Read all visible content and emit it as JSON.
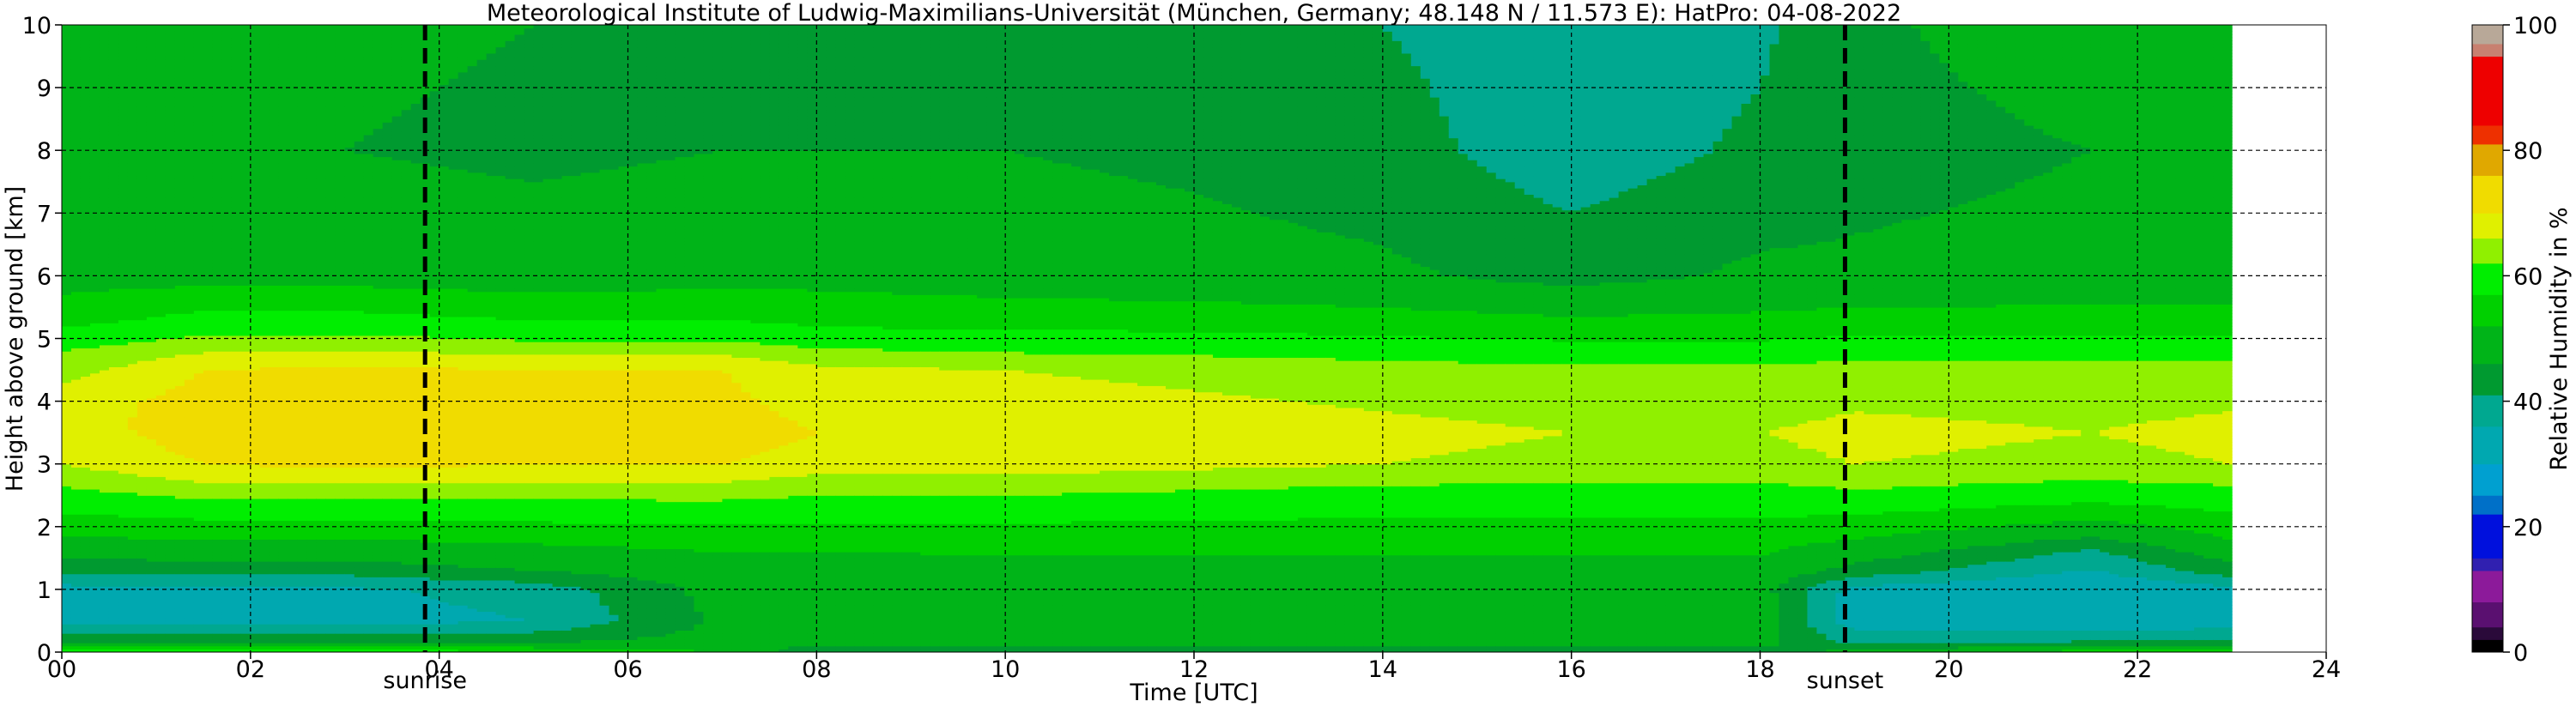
{
  "chart_data": {
    "type": "heatmap",
    "title": "Meteorological Institute of Ludwig-Maximilians-Universität (München, Germany; 48.148 N / 11.573 E):    HatPro: 04-08-2022",
    "xlabel": "Time [UTC]",
    "ylabel": "Height above ground [km]",
    "colorbar_label": "Relative Humidity in %",
    "xlim": [
      0,
      24
    ],
    "ylim": [
      0,
      10
    ],
    "x_ticks": [
      0,
      2,
      4,
      6,
      8,
      10,
      12,
      14,
      16,
      18,
      20,
      22,
      24
    ],
    "x_tick_labels": [
      "00",
      "02",
      "04",
      "06",
      "08",
      "10",
      "12",
      "14",
      "16",
      "18",
      "20",
      "22",
      "24"
    ],
    "y_ticks": [
      0,
      1,
      2,
      3,
      4,
      5,
      6,
      7,
      8,
      9,
      10
    ],
    "y_tick_labels": [
      "0",
      "1",
      "2",
      "3",
      "4",
      "5",
      "6",
      "7",
      "8",
      "9",
      "10"
    ],
    "colorbar_ticks": [
      0,
      20,
      40,
      60,
      80,
      100
    ],
    "colorbar_tick_labels": [
      "0",
      "20",
      "40",
      "60",
      "80",
      "100"
    ],
    "data_end_time": 23.0,
    "grid": true,
    "events": [
      {
        "label": "sunrise",
        "time": 3.85
      },
      {
        "label": "sunset",
        "time": 18.9
      }
    ],
    "colormap": [
      {
        "from": 0,
        "to": 2,
        "color": "#000000"
      },
      {
        "from": 2,
        "to": 4,
        "color": "#2a0a3a"
      },
      {
        "from": 4,
        "to": 8,
        "color": "#5a1070"
      },
      {
        "from": 8,
        "to": 13,
        "color": "#8c1a9a"
      },
      {
        "from": 13,
        "to": 15,
        "color": "#3020b0"
      },
      {
        "from": 15,
        "to": 22,
        "color": "#0010dd"
      },
      {
        "from": 22,
        "to": 25,
        "color": "#0070c8"
      },
      {
        "from": 25,
        "to": 30,
        "color": "#00a0d0"
      },
      {
        "from": 30,
        "to": 36,
        "color": "#00a8b0"
      },
      {
        "from": 36,
        "to": 41,
        "color": "#00a890"
      },
      {
        "from": 41,
        "to": 46,
        "color": "#009a30"
      },
      {
        "from": 46,
        "to": 52,
        "color": "#00b418"
      },
      {
        "from": 52,
        "to": 57,
        "color": "#00d000"
      },
      {
        "from": 57,
        "to": 62,
        "color": "#00ee00"
      },
      {
        "from": 62,
        "to": 66,
        "color": "#90f000"
      },
      {
        "from": 66,
        "to": 70,
        "color": "#e0f000"
      },
      {
        "from": 70,
        "to": 76,
        "color": "#f0dc00"
      },
      {
        "from": 76,
        "to": 81,
        "color": "#e0a800"
      },
      {
        "from": 81,
        "to": 84,
        "color": "#ee3000"
      },
      {
        "from": 84,
        "to": 95,
        "color": "#ee0000"
      },
      {
        "from": 95,
        "to": 97,
        "color": "#c88070"
      },
      {
        "from": 97,
        "to": 100,
        "color": "#b8a898"
      }
    ],
    "rh_profiles": [
      {
        "time": 0.0,
        "heights": [
          0,
          0.15,
          0.5,
          1.0,
          1.35,
          1.7,
          2.3,
          3.0,
          4.0,
          4.8,
          5.4,
          6.5,
          8.0,
          10.0
        ],
        "rh": [
          60,
          46,
          35,
          34,
          43,
          50,
          58,
          66,
          68,
          62,
          54,
          47,
          46,
          48
        ]
      },
      {
        "time": 1.5,
        "heights": [
          0,
          0.15,
          0.5,
          1.0,
          1.4,
          1.8,
          2.5,
          3.0,
          3.6,
          4.5,
          5.2,
          6.0,
          8.0,
          10.0
        ],
        "rh": [
          60,
          46,
          34,
          35,
          45,
          52,
          63,
          70,
          73,
          70,
          60,
          50,
          46,
          47
        ]
      },
      {
        "time": 3.0,
        "heights": [
          0,
          0.15,
          0.5,
          1.0,
          1.35,
          1.8,
          2.5,
          3.0,
          3.5,
          4.5,
          5.2,
          6.0,
          8.0,
          10.0
        ],
        "rh": [
          61,
          46,
          34,
          35,
          44,
          52,
          63,
          71,
          74,
          71,
          60,
          50,
          46,
          47
        ]
      },
      {
        "time": 5.0,
        "heights": [
          0,
          0.15,
          0.5,
          1.0,
          1.3,
          1.8,
          2.5,
          3.0,
          3.5,
          4.5,
          5.2,
          6.0,
          8.0,
          10.0
        ],
        "rh": [
          58,
          46,
          36,
          38,
          46,
          53,
          63,
          70,
          72,
          70,
          58,
          49,
          45,
          46
        ]
      },
      {
        "time": 7.0,
        "heights": [
          0,
          0.15,
          0.5,
          1.0,
          1.3,
          1.8,
          2.5,
          3.0,
          3.5,
          4.5,
          5.2,
          6.0,
          8.0,
          10.0
        ],
        "rh": [
          52,
          48,
          47,
          48,
          49,
          54,
          63,
          70,
          72,
          70,
          58,
          50,
          46,
          45
        ]
      },
      {
        "time": 8.0,
        "heights": [
          0,
          0.15,
          0.5,
          1.0,
          1.3,
          1.8,
          2.5,
          3.0,
          3.5,
          4.5,
          5.2,
          6.0,
          8.0,
          10.0
        ],
        "rh": [
          42,
          47,
          50,
          49,
          49,
          54,
          62,
          68,
          70,
          67,
          57,
          50,
          46,
          42
        ]
      },
      {
        "time": 10.0,
        "heights": [
          0,
          0.15,
          0.5,
          1.0,
          1.3,
          1.8,
          2.5,
          3.0,
          3.5,
          4.5,
          5.2,
          6.0,
          8.0,
          10.0
        ],
        "rh": [
          42,
          48,
          50,
          49,
          50,
          54,
          62,
          68,
          69,
          66,
          56,
          49,
          46,
          44
        ]
      },
      {
        "time": 12.0,
        "heights": [
          0,
          0.15,
          0.5,
          1.0,
          1.3,
          1.8,
          2.5,
          3.0,
          3.5,
          4.5,
          5.2,
          6.0,
          8.0,
          10.0
        ],
        "rh": [
          43,
          48,
          50,
          49,
          50,
          54,
          61,
          67,
          68,
          65,
          56,
          48,
          45,
          44
        ]
      },
      {
        "time": 14.0,
        "heights": [
          0,
          0.15,
          0.5,
          1.0,
          1.3,
          1.8,
          2.5,
          3.0,
          3.5,
          4.5,
          5.2,
          6.0,
          8.0,
          10.0
        ],
        "rh": [
          43,
          48,
          50,
          49,
          50,
          54,
          60,
          66,
          67,
          64,
          55,
          47,
          43,
          41
        ]
      },
      {
        "time": 16.0,
        "heights": [
          0,
          0.15,
          0.5,
          1.0,
          1.3,
          1.8,
          2.5,
          3.0,
          3.5,
          4.5,
          5.2,
          6.0,
          8.0,
          10.0
        ],
        "rh": [
          43,
          48,
          50,
          49,
          50,
          54,
          60,
          65,
          66,
          63,
          54,
          44,
          38,
          38
        ]
      },
      {
        "time": 18.0,
        "heights": [
          0,
          0.15,
          0.5,
          1.0,
          1.3,
          1.8,
          2.5,
          3.0,
          3.5,
          4.5,
          5.2,
          6.0,
          8.0,
          10.0
        ],
        "rh": [
          44,
          48,
          49,
          48,
          50,
          54,
          60,
          65,
          66,
          63,
          54,
          47,
          42,
          40
        ]
      },
      {
        "time": 19.0,
        "heights": [
          0,
          0.15,
          0.5,
          1.0,
          1.3,
          1.8,
          2.5,
          3.0,
          3.5,
          4.5,
          5.2,
          6.0,
          8.0,
          10.0
        ],
        "rh": [
          48,
          40,
          33,
          34,
          44,
          52,
          61,
          66,
          67,
          64,
          55,
          47,
          44,
          45
        ]
      },
      {
        "time": 21.5,
        "heights": [
          0,
          0.15,
          0.5,
          1.0,
          1.6,
          2.0,
          2.5,
          3.0,
          3.5,
          4.5,
          5.2,
          6.0,
          8.0,
          10.0
        ],
        "rh": [
          55,
          42,
          30,
          31,
          40,
          50,
          59,
          65,
          66,
          64,
          55,
          48,
          46,
          49
        ]
      },
      {
        "time": 23.0,
        "heights": [
          0,
          0.15,
          0.5,
          1.0,
          1.3,
          1.8,
          2.5,
          3.0,
          3.5,
          4.5,
          5.2,
          6.0,
          8.0,
          10.0
        ],
        "rh": [
          56,
          43,
          33,
          34,
          44,
          52,
          60,
          66,
          67,
          64,
          55,
          48,
          46,
          49
        ]
      }
    ]
  }
}
